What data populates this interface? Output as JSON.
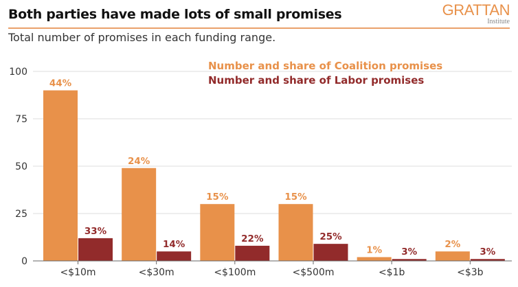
{
  "header": {
    "title": "Both parties have made lots of small promises",
    "subtitle": "Total number of promises in each funding range.",
    "logo_main": "GRATTAN",
    "logo_sub": "Institute"
  },
  "colors": {
    "coalition": "#e8914a",
    "labor": "#922b2b",
    "accent_rule": "#e9a06a",
    "grid": "#dddddd"
  },
  "chart_data": {
    "type": "bar",
    "title": "Both parties have made lots of small promises",
    "subtitle": "Total number of promises in each funding range.",
    "xlabel": "",
    "ylabel": "",
    "ylim": [
      0,
      100
    ],
    "yticks": [
      0,
      25,
      50,
      75,
      100
    ],
    "grid": true,
    "legend_position": "top-right",
    "categories": [
      "<$10m",
      "<$30m",
      "<$100m",
      "<$500m",
      "<$1b",
      "<$3b"
    ],
    "series": [
      {
        "name": "Number and share of Coalition promises",
        "color": "#e8914a",
        "values": [
          90,
          49,
          30,
          30,
          2,
          5
        ],
        "labels": [
          "44%",
          "24%",
          "15%",
          "15%",
          "1%",
          "2%"
        ]
      },
      {
        "name": "Number and share of Labor promises",
        "color": "#922b2b",
        "values": [
          12,
          5,
          8,
          9,
          1,
          1
        ],
        "labels": [
          "33%",
          "14%",
          "22%",
          "25%",
          "3%",
          "3%"
        ]
      }
    ]
  }
}
